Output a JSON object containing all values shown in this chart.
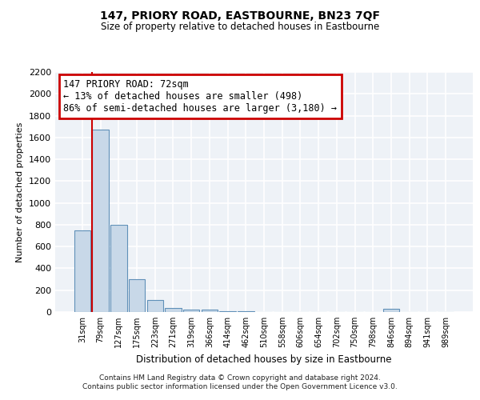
{
  "title": "147, PRIORY ROAD, EASTBOURNE, BN23 7QF",
  "subtitle": "Size of property relative to detached houses in Eastbourne",
  "xlabel": "Distribution of detached houses by size in Eastbourne",
  "ylabel": "Number of detached properties",
  "categories": [
    "31sqm",
    "79sqm",
    "127sqm",
    "175sqm",
    "223sqm",
    "271sqm",
    "319sqm",
    "366sqm",
    "414sqm",
    "462sqm",
    "510sqm",
    "558sqm",
    "606sqm",
    "654sqm",
    "702sqm",
    "750sqm",
    "798sqm",
    "846sqm",
    "894sqm",
    "941sqm",
    "989sqm"
  ],
  "values": [
    750,
    1670,
    800,
    300,
    110,
    40,
    25,
    20,
    10,
    8,
    0,
    0,
    0,
    0,
    0,
    0,
    0,
    30,
    0,
    0,
    0
  ],
  "bar_color": "#c8d8e8",
  "bar_edge_color": "#6090b8",
  "background_color": "#eef2f7",
  "grid_color": "#ffffff",
  "annotation_box_text": "147 PRIORY ROAD: 72sqm\n← 13% of detached houses are smaller (498)\n86% of semi-detached houses are larger (3,180) →",
  "annotation_box_edge_color": "#cc0000",
  "red_line_x": 0.55,
  "ylim": [
    0,
    2200
  ],
  "yticks": [
    0,
    200,
    400,
    600,
    800,
    1000,
    1200,
    1400,
    1600,
    1800,
    2000,
    2200
  ],
  "footer_line1": "Contains HM Land Registry data © Crown copyright and database right 2024.",
  "footer_line2": "Contains public sector information licensed under the Open Government Licence v3.0."
}
